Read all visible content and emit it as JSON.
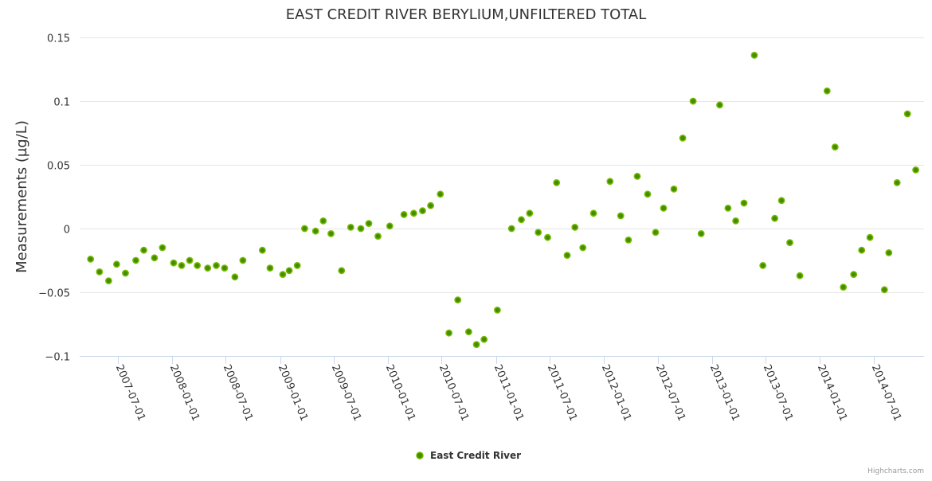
{
  "chart_data": {
    "type": "scatter",
    "title": "EAST CREDIT RIVER BERYLIUM,UNFILTERED TOTAL",
    "xlabel": "",
    "ylabel": "Measurements (µg/L)",
    "ylim": [
      -0.1,
      0.15
    ],
    "yticks": [
      -0.1,
      -0.05,
      0,
      0.05,
      0.1,
      0.15
    ],
    "ytick_labels": [
      "−0.1",
      "−0.05",
      "0",
      "0.05",
      "0.1",
      "0.15"
    ],
    "xlim": [
      "2007-02-23",
      "2014-12-19"
    ],
    "xticks": [
      "2007-07-01",
      "2008-01-01",
      "2008-07-01",
      "2009-01-01",
      "2009-07-01",
      "2010-01-01",
      "2010-07-01",
      "2011-01-01",
      "2011-07-01",
      "2012-01-01",
      "2012-07-01",
      "2013-01-01",
      "2013-07-01",
      "2014-01-01",
      "2014-07-01"
    ],
    "grid": true,
    "legend_position": "bottom-center",
    "credits": "Highcharts.com",
    "series": [
      {
        "name": "East Credit River",
        "color": "#7ab800",
        "points": [
          [
            "2007-04-01",
            -0.024
          ],
          [
            "2007-05-01",
            -0.034
          ],
          [
            "2007-06-01",
            -0.041
          ],
          [
            "2007-06-28",
            -0.028
          ],
          [
            "2007-07-28",
            -0.035
          ],
          [
            "2007-09-01",
            -0.025
          ],
          [
            "2007-09-28",
            -0.017
          ],
          [
            "2007-11-03",
            -0.023
          ],
          [
            "2007-11-30",
            -0.015
          ],
          [
            "2008-01-07",
            -0.027
          ],
          [
            "2008-02-03",
            -0.029
          ],
          [
            "2008-03-01",
            -0.025
          ],
          [
            "2008-03-27",
            -0.029
          ],
          [
            "2008-05-01",
            -0.031
          ],
          [
            "2008-05-30",
            -0.029
          ],
          [
            "2008-06-27",
            -0.031
          ],
          [
            "2008-08-01",
            -0.038
          ],
          [
            "2008-08-28",
            -0.025
          ],
          [
            "2008-11-02",
            -0.017
          ],
          [
            "2008-11-28",
            -0.031
          ],
          [
            "2009-01-10",
            -0.036
          ],
          [
            "2009-02-01",
            -0.033
          ],
          [
            "2009-02-28",
            -0.029
          ],
          [
            "2009-03-25",
            0.0
          ],
          [
            "2009-05-01",
            -0.002
          ],
          [
            "2009-05-27",
            0.006
          ],
          [
            "2009-06-22",
            -0.004
          ],
          [
            "2009-07-28",
            -0.033
          ],
          [
            "2009-08-28",
            0.001
          ],
          [
            "2009-10-01",
            0.0
          ],
          [
            "2009-10-28",
            0.004
          ],
          [
            "2009-11-28",
            -0.006
          ],
          [
            "2010-01-07",
            0.002
          ],
          [
            "2010-02-24",
            0.011
          ],
          [
            "2010-03-29",
            0.012
          ],
          [
            "2010-04-28",
            0.014
          ],
          [
            "2010-05-25",
            0.018
          ],
          [
            "2010-06-27",
            0.027
          ],
          [
            "2010-07-26",
            -0.082
          ],
          [
            "2010-08-25",
            -0.056
          ],
          [
            "2010-10-01",
            -0.081
          ],
          [
            "2010-10-27",
            -0.091
          ],
          [
            "2010-11-22",
            -0.087
          ],
          [
            "2011-01-06",
            -0.064
          ],
          [
            "2011-02-23",
            0.0
          ],
          [
            "2011-03-28",
            0.007
          ],
          [
            "2011-04-25",
            0.012
          ],
          [
            "2011-05-24",
            -0.003
          ],
          [
            "2011-06-25",
            -0.007
          ],
          [
            "2011-07-25",
            0.036
          ],
          [
            "2011-08-30",
            -0.021
          ],
          [
            "2011-09-25",
            0.001
          ],
          [
            "2011-10-22",
            -0.015
          ],
          [
            "2011-11-27",
            0.012
          ],
          [
            "2012-01-22",
            0.037
          ],
          [
            "2012-02-27",
            0.01
          ],
          [
            "2012-03-24",
            -0.009
          ],
          [
            "2012-04-23",
            0.041
          ],
          [
            "2012-05-28",
            0.027
          ],
          [
            "2012-06-24",
            -0.003
          ],
          [
            "2012-07-21",
            0.016
          ],
          [
            "2012-08-25",
            0.031
          ],
          [
            "2012-09-24",
            0.071
          ],
          [
            "2012-10-29",
            0.1
          ],
          [
            "2012-11-25",
            -0.004
          ],
          [
            "2013-01-27",
            0.097
          ],
          [
            "2013-02-24",
            0.016
          ],
          [
            "2013-03-22",
            0.006
          ],
          [
            "2013-04-19",
            0.02
          ],
          [
            "2013-05-24",
            0.136
          ],
          [
            "2013-06-22",
            -0.029
          ],
          [
            "2013-08-01",
            0.008
          ],
          [
            "2013-08-24",
            0.022
          ],
          [
            "2013-09-21",
            -0.011
          ],
          [
            "2013-10-25",
            -0.037
          ],
          [
            "2014-01-25",
            0.108
          ],
          [
            "2014-02-21",
            0.064
          ],
          [
            "2014-03-21",
            -0.046
          ],
          [
            "2014-04-25",
            -0.036
          ],
          [
            "2014-05-22",
            -0.017
          ],
          [
            "2014-06-19",
            -0.007
          ],
          [
            "2014-08-07",
            -0.048
          ],
          [
            "2014-08-22",
            -0.019
          ],
          [
            "2014-09-19",
            0.036
          ],
          [
            "2014-10-24",
            0.09
          ],
          [
            "2014-11-21",
            0.046
          ]
        ]
      }
    ]
  }
}
